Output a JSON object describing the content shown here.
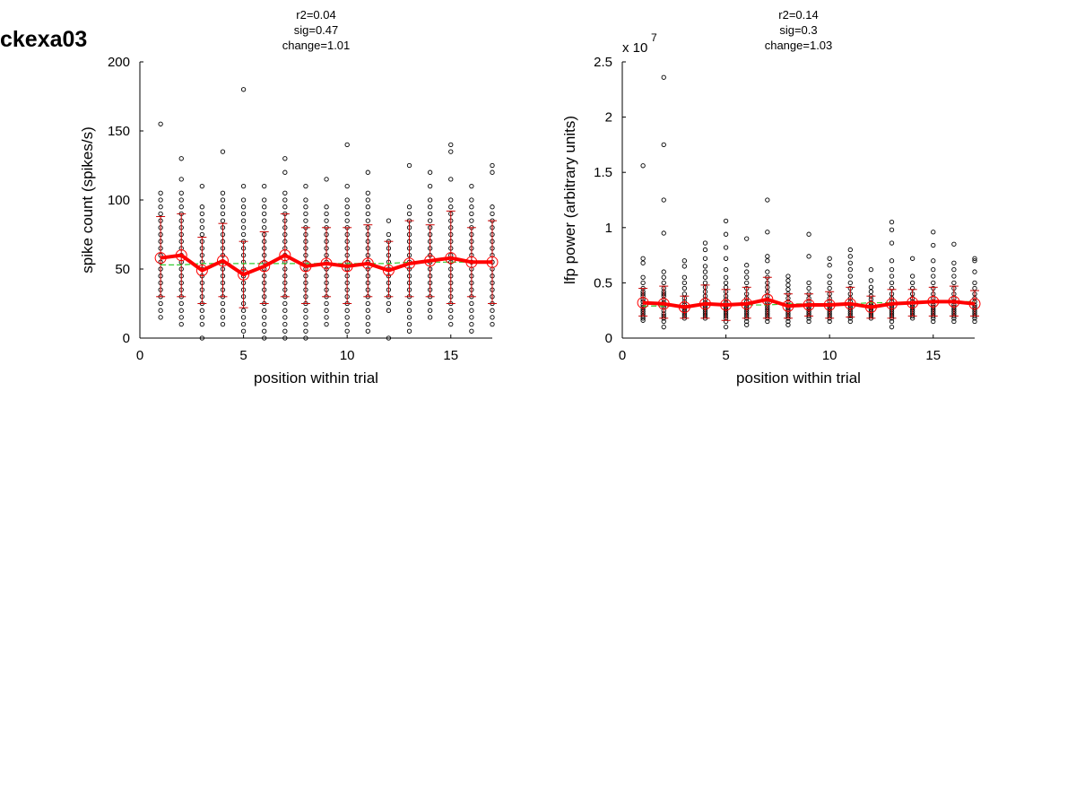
{
  "figure": {
    "title": "ckexa03"
  },
  "chart_data": [
    {
      "type": "scatter",
      "stats": [
        "r2=0.04",
        "sig=0.47",
        "change=1.01"
      ],
      "xlabel": "position within trial",
      "ylabel": "spike count (spikes/s)",
      "xlim": [
        0,
        17
      ],
      "ylim": [
        0,
        200
      ],
      "xticks": [
        0,
        5,
        10,
        15
      ],
      "yticks": [
        0,
        50,
        100,
        150,
        200
      ],
      "exponent": "",
      "grid": false,
      "x": [
        1,
        2,
        3,
        4,
        5,
        6,
        7,
        8,
        9,
        10,
        11,
        12,
        13,
        14,
        15,
        16,
        17
      ],
      "mean": [
        58,
        60,
        49,
        56,
        46,
        52,
        60,
        52,
        54,
        52,
        54,
        49,
        54,
        56,
        58,
        55,
        55
      ],
      "error_low": [
        30,
        30,
        25,
        30,
        22,
        25,
        30,
        25,
        30,
        25,
        30,
        30,
        30,
        30,
        25,
        30,
        25
      ],
      "error_high": [
        88,
        90,
        73,
        83,
        70,
        77,
        90,
        80,
        80,
        80,
        82,
        70,
        85,
        82,
        92,
        80,
        85
      ],
      "trend": [
        53,
        53,
        54,
        54,
        54,
        54,
        54,
        54,
        54,
        54,
        54,
        54,
        55,
        55,
        55,
        55,
        55
      ],
      "points": [
        [
          155,
          105,
          100,
          95,
          90,
          85,
          80,
          75,
          70,
          65,
          60,
          55,
          50,
          45,
          40,
          35,
          30,
          25,
          20,
          15
        ],
        [
          130,
          115,
          105,
          100,
          95,
          90,
          85,
          80,
          75,
          70,
          65,
          60,
          55,
          50,
          45,
          40,
          35,
          30,
          25,
          20,
          15,
          10
        ],
        [
          110,
          95,
          90,
          85,
          80,
          75,
          70,
          65,
          60,
          55,
          50,
          45,
          40,
          35,
          30,
          25,
          20,
          15,
          10,
          0
        ],
        [
          135,
          105,
          100,
          95,
          90,
          85,
          80,
          75,
          70,
          65,
          60,
          55,
          50,
          45,
          40,
          35,
          30,
          25,
          20,
          15,
          10
        ],
        [
          180,
          110,
          100,
          95,
          90,
          85,
          80,
          75,
          70,
          65,
          60,
          55,
          50,
          45,
          40,
          35,
          30,
          25,
          20,
          15,
          10,
          5
        ],
        [
          110,
          100,
          95,
          90,
          85,
          80,
          75,
          70,
          65,
          60,
          55,
          50,
          45,
          40,
          35,
          30,
          25,
          20,
          15,
          10,
          5,
          0
        ],
        [
          130,
          120,
          105,
          100,
          95,
          90,
          85,
          80,
          75,
          70,
          65,
          60,
          55,
          50,
          45,
          40,
          35,
          30,
          25,
          20,
          15,
          10,
          5,
          0
        ],
        [
          110,
          100,
          95,
          90,
          85,
          80,
          75,
          70,
          65,
          60,
          55,
          50,
          45,
          40,
          35,
          30,
          25,
          20,
          15,
          10,
          5,
          0
        ],
        [
          115,
          95,
          90,
          85,
          80,
          75,
          70,
          65,
          60,
          55,
          50,
          45,
          40,
          35,
          30,
          25,
          20,
          15,
          10
        ],
        [
          140,
          110,
          100,
          95,
          90,
          85,
          80,
          75,
          70,
          65,
          60,
          55,
          50,
          45,
          40,
          35,
          30,
          25,
          20,
          15,
          10,
          5
        ],
        [
          120,
          105,
          100,
          95,
          90,
          85,
          80,
          75,
          70,
          65,
          60,
          55,
          50,
          45,
          40,
          35,
          30,
          25,
          20,
          15,
          10,
          5
        ],
        [
          85,
          75,
          70,
          65,
          60,
          55,
          50,
          45,
          40,
          35,
          30,
          25,
          20,
          0
        ],
        [
          125,
          95,
          90,
          85,
          80,
          75,
          70,
          65,
          60,
          55,
          50,
          45,
          40,
          35,
          30,
          25,
          20,
          15,
          10,
          5
        ],
        [
          120,
          110,
          100,
          95,
          90,
          85,
          80,
          75,
          70,
          65,
          60,
          55,
          50,
          45,
          40,
          35,
          30,
          25,
          20,
          15
        ],
        [
          140,
          135,
          115,
          100,
          95,
          90,
          85,
          80,
          75,
          70,
          65,
          60,
          55,
          50,
          45,
          40,
          35,
          30,
          25,
          20,
          15,
          10
        ],
        [
          110,
          100,
          95,
          90,
          85,
          80,
          75,
          70,
          65,
          60,
          55,
          50,
          45,
          40,
          35,
          30,
          25,
          20,
          15,
          10,
          5
        ],
        [
          125,
          120,
          95,
          90,
          85,
          80,
          75,
          70,
          65,
          60,
          55,
          50,
          45,
          40,
          35,
          30,
          25,
          20,
          15,
          10
        ]
      ],
      "colors": {
        "mean_line": "#ff0000",
        "error_bars": "#cc0000",
        "trend_line": "#33cc33",
        "points": "#000000"
      }
    },
    {
      "type": "scatter",
      "stats": [
        "r2=0.14",
        "sig=0.3",
        "change=1.03"
      ],
      "xlabel": "position within trial",
      "ylabel": "lfp power (arbitrary units)",
      "xlim": [
        0,
        17
      ],
      "ylim": [
        0,
        2.5
      ],
      "xticks": [
        0,
        5,
        10,
        15
      ],
      "yticks": [
        0,
        0.5,
        1,
        1.5,
        2,
        2.5
      ],
      "exponent": "7",
      "grid": false,
      "x": [
        1,
        2,
        3,
        4,
        5,
        6,
        7,
        8,
        9,
        10,
        11,
        12,
        13,
        14,
        15,
        16,
        17
      ],
      "mean": [
        0.32,
        0.31,
        0.28,
        0.31,
        0.3,
        0.31,
        0.35,
        0.29,
        0.3,
        0.3,
        0.31,
        0.28,
        0.31,
        0.32,
        0.33,
        0.33,
        0.31
      ],
      "error_low": [
        0.2,
        0.18,
        0.18,
        0.18,
        0.16,
        0.18,
        0.18,
        0.18,
        0.2,
        0.18,
        0.19,
        0.18,
        0.18,
        0.2,
        0.2,
        0.2,
        0.2
      ],
      "error_high": [
        0.45,
        0.47,
        0.38,
        0.48,
        0.44,
        0.46,
        0.55,
        0.4,
        0.4,
        0.42,
        0.46,
        0.38,
        0.44,
        0.44,
        0.46,
        0.47,
        0.43
      ],
      "trend": [
        0.29,
        0.29,
        0.29,
        0.3,
        0.3,
        0.3,
        0.3,
        0.31,
        0.31,
        0.31,
        0.31,
        0.32,
        0.32,
        0.32,
        0.32,
        0.33,
        0.33
      ],
      "points": [
        [
          1.56,
          0.72,
          0.68,
          0.55,
          0.5,
          0.45,
          0.42,
          0.4,
          0.38,
          0.35,
          0.33,
          0.3,
          0.28,
          0.26,
          0.24,
          0.22,
          0.2,
          0.18,
          0.16
        ],
        [
          2.36,
          1.75,
          1.25,
          0.95,
          0.6,
          0.55,
          0.5,
          0.45,
          0.42,
          0.4,
          0.38,
          0.35,
          0.32,
          0.3,
          0.28,
          0.25,
          0.22,
          0.2,
          0.18,
          0.15,
          0.1
        ],
        [
          0.7,
          0.65,
          0.55,
          0.5,
          0.45,
          0.4,
          0.36,
          0.33,
          0.3,
          0.28,
          0.26,
          0.24,
          0.22,
          0.2,
          0.18
        ],
        [
          0.86,
          0.8,
          0.72,
          0.65,
          0.6,
          0.55,
          0.5,
          0.46,
          0.42,
          0.38,
          0.35,
          0.32,
          0.3,
          0.28,
          0.26,
          0.24,
          0.22,
          0.2,
          0.18
        ],
        [
          1.06,
          0.94,
          0.82,
          0.72,
          0.62,
          0.55,
          0.5,
          0.46,
          0.42,
          0.38,
          0.35,
          0.32,
          0.3,
          0.28,
          0.26,
          0.24,
          0.22,
          0.2,
          0.18,
          0.15,
          0.1
        ],
        [
          0.9,
          0.66,
          0.6,
          0.55,
          0.5,
          0.45,
          0.4,
          0.36,
          0.33,
          0.3,
          0.28,
          0.26,
          0.24,
          0.22,
          0.2,
          0.18,
          0.15,
          0.12
        ],
        [
          1.25,
          0.96,
          0.74,
          0.7,
          0.6,
          0.55,
          0.5,
          0.46,
          0.42,
          0.38,
          0.35,
          0.32,
          0.3,
          0.28,
          0.26,
          0.24,
          0.22,
          0.2,
          0.18,
          0.15
        ],
        [
          0.56,
          0.52,
          0.48,
          0.44,
          0.4,
          0.36,
          0.33,
          0.3,
          0.28,
          0.26,
          0.24,
          0.22,
          0.2,
          0.18,
          0.15,
          0.12
        ],
        [
          0.94,
          0.74,
          0.5,
          0.45,
          0.4,
          0.36,
          0.33,
          0.3,
          0.28,
          0.26,
          0.24,
          0.22,
          0.2,
          0.18,
          0.15
        ],
        [
          0.72,
          0.66,
          0.56,
          0.5,
          0.45,
          0.4,
          0.36,
          0.33,
          0.3,
          0.28,
          0.26,
          0.24,
          0.22,
          0.2,
          0.18,
          0.15
        ],
        [
          0.8,
          0.74,
          0.68,
          0.62,
          0.56,
          0.5,
          0.45,
          0.4,
          0.36,
          0.33,
          0.3,
          0.28,
          0.26,
          0.24,
          0.22,
          0.2,
          0.18,
          0.15
        ],
        [
          0.62,
          0.52,
          0.46,
          0.42,
          0.38,
          0.35,
          0.32,
          0.3,
          0.28,
          0.26,
          0.24,
          0.22,
          0.2,
          0.18
        ],
        [
          1.05,
          0.98,
          0.86,
          0.7,
          0.62,
          0.56,
          0.5,
          0.45,
          0.4,
          0.36,
          0.33,
          0.3,
          0.28,
          0.26,
          0.24,
          0.22,
          0.2,
          0.18,
          0.15,
          0.1
        ],
        [
          0.72,
          0.56,
          0.5,
          0.45,
          0.4,
          0.36,
          0.33,
          0.3,
          0.28,
          0.26,
          0.24,
          0.22,
          0.2,
          0.18
        ],
        [
          0.96,
          0.84,
          0.7,
          0.62,
          0.56,
          0.5,
          0.45,
          0.4,
          0.36,
          0.33,
          0.3,
          0.28,
          0.26,
          0.24,
          0.22,
          0.2,
          0.18,
          0.15
        ],
        [
          0.85,
          0.68,
          0.62,
          0.56,
          0.5,
          0.45,
          0.4,
          0.36,
          0.33,
          0.3,
          0.28,
          0.26,
          0.24,
          0.22,
          0.2,
          0.18,
          0.15
        ],
        [
          0.72,
          0.7,
          0.6,
          0.5,
          0.45,
          0.4,
          0.36,
          0.33,
          0.3,
          0.28,
          0.26,
          0.24,
          0.22,
          0.2,
          0.18,
          0.15
        ]
      ],
      "colors": {
        "mean_line": "#ff0000",
        "error_bars": "#cc0000",
        "trend_line": "#33cc33",
        "points": "#000000"
      }
    }
  ]
}
